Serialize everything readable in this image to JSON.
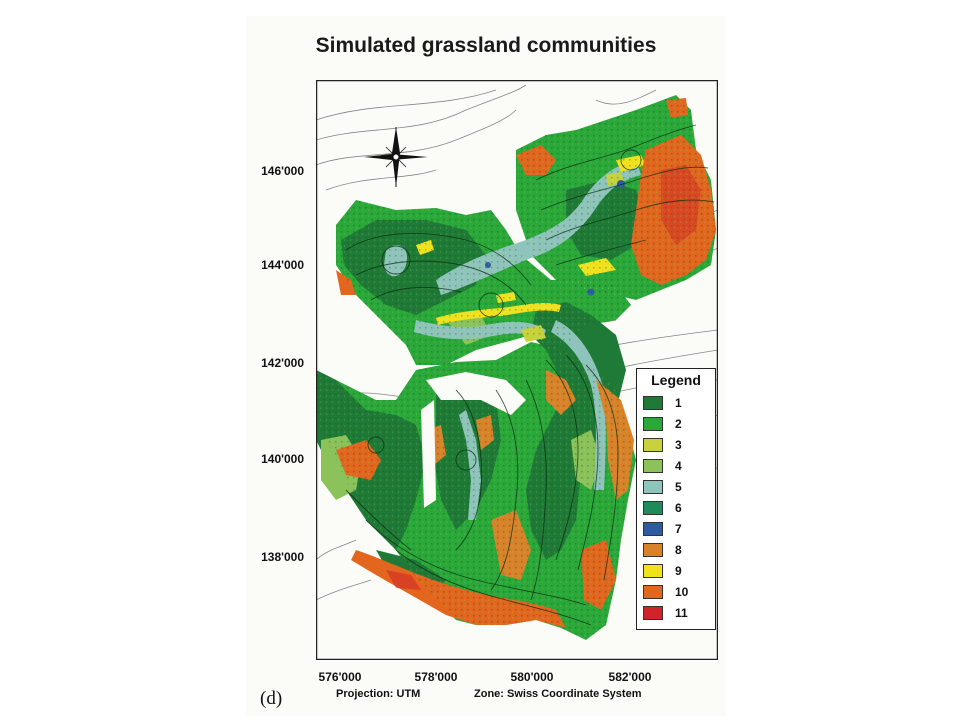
{
  "title": "Simulated grassland communities",
  "panel_label": "(d)",
  "projection": "Projection: UTM",
  "zone": "Zone: Swiss Coordinate System",
  "y_ticks": [
    "146'000",
    "144'000",
    "142'000",
    "140'000",
    "138'000"
  ],
  "x_ticks": [
    "576'000",
    "578'000",
    "580'000",
    "582'000"
  ],
  "legend": {
    "title": "Legend",
    "items": [
      {
        "label": "1",
        "color": "#1e7a36"
      },
      {
        "label": "2",
        "color": "#2aa83a"
      },
      {
        "label": "3",
        "color": "#c8d23a"
      },
      {
        "label": "4",
        "color": "#8cc25a"
      },
      {
        "label": "5",
        "color": "#8fc4bc"
      },
      {
        "label": "6",
        "color": "#1f8a5a"
      },
      {
        "label": "7",
        "color": "#2d5aa0"
      },
      {
        "label": "8",
        "color": "#d9822a"
      },
      {
        "label": "9",
        "color": "#f2e21e"
      },
      {
        "label": "10",
        "color": "#e2661e"
      },
      {
        "label": "11",
        "color": "#d0232a"
      }
    ]
  },
  "icons": {
    "compass": "north-arrow-compass-icon"
  }
}
